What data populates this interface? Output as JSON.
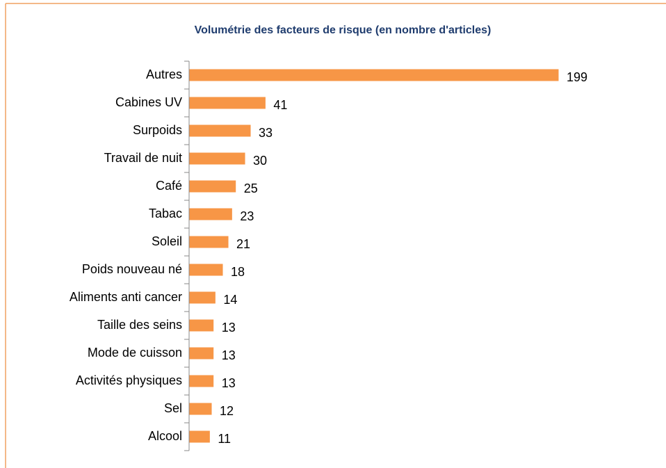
{
  "chart_data": {
    "type": "bar",
    "orientation": "horizontal",
    "title": "Volumétrie des facteurs de risque (en nombre d'articles)",
    "categories": [
      "Autres",
      "Cabines UV",
      "Surpoids",
      "Travail de nuit",
      "Café",
      "Tabac",
      "Soleil",
      "Poids nouveau né",
      "Aliments anti cancer",
      "Taille des seins",
      "Mode de cuisson",
      "Activités physiques",
      "Sel",
      "Alcool"
    ],
    "values": [
      199,
      41,
      33,
      30,
      25,
      23,
      21,
      18,
      14,
      13,
      13,
      13,
      12,
      11
    ],
    "color": "#f79646"
  }
}
